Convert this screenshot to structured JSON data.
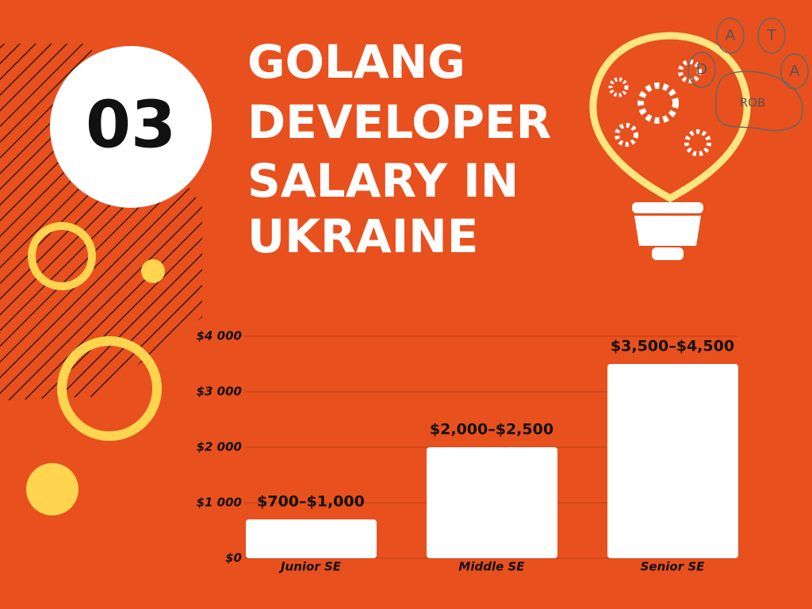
{
  "badge": "03",
  "title_lines": [
    "GOLANG",
    "DEVELOPER",
    "SALARY IN",
    "UKRAINE"
  ],
  "logo": {
    "letters": [
      "A",
      "T",
      "D",
      "A"
    ],
    "word": "ROB"
  },
  "chart_data": {
    "type": "bar",
    "categories": [
      "Junior SE",
      "Middle SE",
      "Senior SE"
    ],
    "values": [
      700,
      2000,
      3500
    ],
    "value_labels": [
      "$700–$1,000",
      "$2,000–$2,500",
      "$3,500–$4,500"
    ],
    "color": "#ffffff",
    "ylim": [
      0,
      4000
    ],
    "yticks": [
      {
        "value": 0,
        "label": "$0"
      },
      {
        "value": 1000,
        "label": "$1 000"
      },
      {
        "value": 2000,
        "label": "$2 000"
      },
      {
        "value": 3000,
        "label": "$3 000"
      },
      {
        "value": 4000,
        "label": "$4 000"
      }
    ],
    "grid": true
  }
}
